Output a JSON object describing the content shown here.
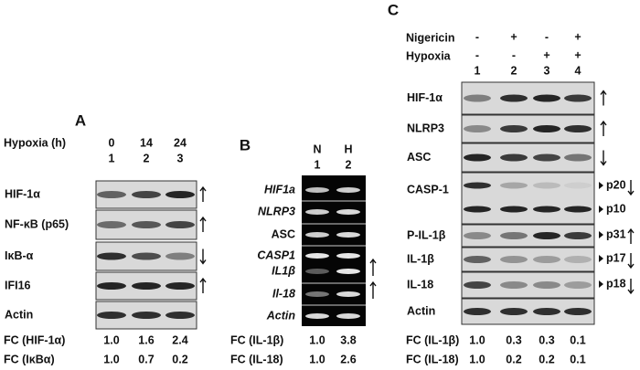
{
  "panel_a": {
    "label": "A",
    "header_label": "Hypoxia (h)",
    "conditions": [
      "0",
      "14",
      "24"
    ],
    "lanes": [
      "1",
      "2",
      "3"
    ],
    "rows": [
      "HIF-1α",
      "NF-κB (p65)",
      "IκB-α",
      "IFI16",
      "Actin"
    ],
    "fold_changes": [
      {
        "label": "FC (HIF-1α)",
        "values": [
          "1.0",
          "1.6",
          "2.4"
        ]
      },
      {
        "label": "FC (IκBα)",
        "values": [
          "1.0",
          "0.7",
          "0.2"
        ]
      }
    ]
  },
  "panel_b": {
    "label": "B",
    "conditions": [
      "N",
      "H"
    ],
    "lanes": [
      "1",
      "2"
    ],
    "rows": [
      "HIF1a",
      "NLRP3",
      "ASC",
      "CASP1",
      "IL1β",
      "Il-18",
      "Actin"
    ],
    "fold_changes": [
      {
        "label": "FC (IL-1β)",
        "values": [
          "1.0",
          "3.8"
        ]
      },
      {
        "label": "FC (IL-18)",
        "values": [
          "1.0",
          "2.6"
        ]
      }
    ]
  },
  "panel_c": {
    "label": "C",
    "treatments": [
      {
        "label": "Nigericin",
        "signs": [
          "-",
          "+",
          "-",
          "+"
        ]
      },
      {
        "label": "Hypoxia",
        "signs": [
          "-",
          "-",
          "+",
          "+"
        ]
      }
    ],
    "lanes": [
      "1",
      "2",
      "3",
      "4"
    ],
    "rows": [
      "HIF-1α",
      "NLRP3",
      "ASC",
      "CASP-1",
      "P-IL-1β",
      "IL-1β",
      "IL-18",
      "Actin"
    ],
    "markers": [
      "p20",
      "p10",
      "p31",
      "p17",
      "p18"
    ],
    "fold_changes": [
      {
        "label": "FC (IL-1β)",
        "values": [
          "1.0",
          "0.3",
          "0.3",
          "0.1"
        ]
      },
      {
        "label": "FC (IL-18)",
        "values": [
          "1.0",
          "0.2",
          "0.2",
          "0.1"
        ]
      }
    ]
  }
}
